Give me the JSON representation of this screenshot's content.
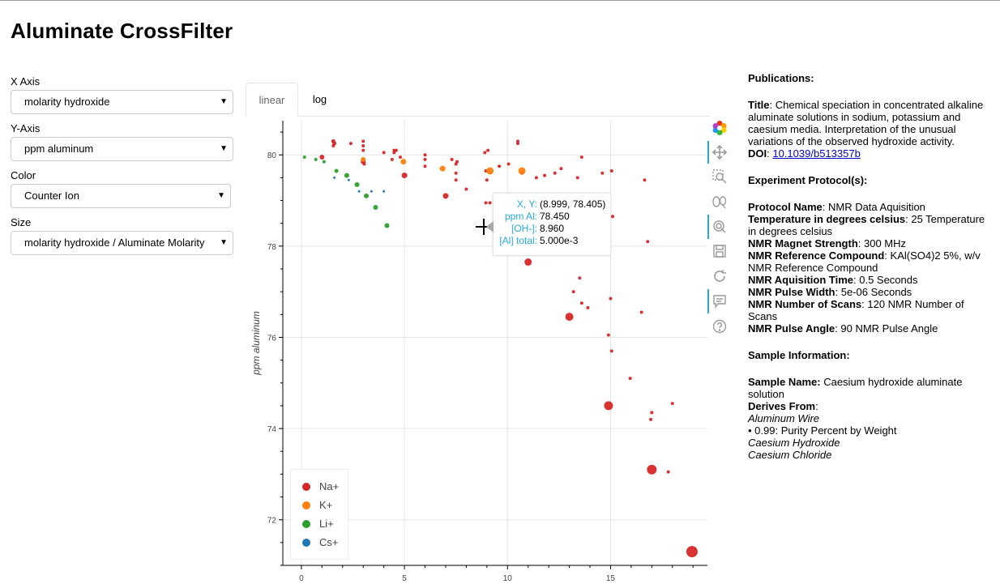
{
  "page_title": "Aluminate CrossFilter",
  "controls": {
    "x_axis": {
      "label": "X Axis",
      "value": "molarity hydroxide"
    },
    "y_axis": {
      "label": "Y-Axis",
      "value": "ppm aluminum"
    },
    "color": {
      "label": "Color",
      "value": "Counter Ion"
    },
    "size": {
      "label": "Size",
      "value": "molarity hydroxide / Aluminate Molarity"
    }
  },
  "tabs": [
    {
      "label": "linear",
      "active": true
    },
    {
      "label": "log",
      "active": false
    }
  ],
  "toolbar": {
    "tools": [
      "bokeh-logo-icon",
      "pan-icon",
      "box-zoom-icon",
      "wheel-zoom-icon",
      "lasso-select-icon",
      "save-icon",
      "reset-icon",
      "hover-icon",
      "help-icon"
    ]
  },
  "tooltip": {
    "rows": [
      {
        "key": "X, Y:",
        "value": "(8.999, 78.405)"
      },
      {
        "key": "ppm Al:",
        "value": "78.450"
      },
      {
        "key": "[OH-]:",
        "value": "8.960"
      },
      {
        "key": "[Al] total:",
        "value": "5.000e-3"
      }
    ]
  },
  "legend": [
    {
      "label": "Na+",
      "color": "#d62728"
    },
    {
      "label": "K+",
      "color": "#ff7f0e"
    },
    {
      "label": "Li+",
      "color": "#2ca02c"
    },
    {
      "label": "Cs+",
      "color": "#1f77b4"
    }
  ],
  "chart_data": {
    "type": "scatter",
    "ylabel": "ppm aluminum",
    "xlabel": "",
    "xlim": [
      -0.9,
      19.7
    ],
    "ylim": [
      71.0,
      80.75
    ],
    "xticks": [
      0,
      5,
      10,
      15
    ],
    "yticks": [
      72,
      74,
      76,
      78,
      80
    ],
    "grid": true,
    "legend_position": "bottom-left",
    "series": [
      {
        "name": "Na+",
        "color": "#d62728",
        "points": [
          [
            1.0,
            79.95,
            3
          ],
          [
            1.55,
            80.3,
            2.5
          ],
          [
            1.6,
            80.25,
            2.5
          ],
          [
            1.55,
            80.2,
            2
          ],
          [
            2.4,
            80.25,
            2
          ],
          [
            3.0,
            80.3,
            2
          ],
          [
            3.0,
            80.2,
            2
          ],
          [
            3.0,
            80.1,
            2
          ],
          [
            3.0,
            79.85,
            3
          ],
          [
            3.05,
            79.8,
            2
          ],
          [
            4.0,
            80.05,
            2
          ],
          [
            4.5,
            80.1,
            2
          ],
          [
            4.6,
            80.1,
            2
          ],
          [
            4.5,
            80.05,
            2
          ],
          [
            4.4,
            79.9,
            2
          ],
          [
            4.8,
            79.95,
            2
          ],
          [
            5.0,
            79.55,
            3.5
          ],
          [
            6.0,
            80.0,
            2
          ],
          [
            6.0,
            79.9,
            2
          ],
          [
            6.0,
            79.75,
            2
          ],
          [
            7.0,
            79.1,
            3.5
          ],
          [
            7.3,
            79.9,
            2
          ],
          [
            7.5,
            79.8,
            2
          ],
          [
            7.55,
            79.85,
            2
          ],
          [
            7.5,
            79.6,
            2
          ],
          [
            7.5,
            79.45,
            2
          ],
          [
            8.0,
            79.25,
            2
          ],
          [
            8.9,
            80.05,
            2
          ],
          [
            9.05,
            80.1,
            2
          ],
          [
            8.95,
            79.65,
            2
          ],
          [
            9.0,
            79.45,
            2
          ],
          [
            8.95,
            78.95,
            2
          ],
          [
            9.15,
            78.95,
            2
          ],
          [
            10.05,
            79.8,
            2
          ],
          [
            10.5,
            80.3,
            2
          ],
          [
            10.5,
            80.25,
            2
          ],
          [
            10.7,
            79.6,
            2
          ],
          [
            11.0,
            77.65,
            4.5
          ],
          [
            11.4,
            79.5,
            2
          ],
          [
            11.8,
            79.55,
            2
          ],
          [
            12.3,
            79.6,
            2
          ],
          [
            12.6,
            79.7,
            2
          ],
          [
            13.2,
            77.0,
            2
          ],
          [
            13.4,
            79.5,
            2
          ],
          [
            13.5,
            77.3,
            2
          ],
          [
            13.6,
            76.75,
            2
          ],
          [
            13.6,
            79.95,
            2
          ],
          [
            13.9,
            76.65,
            2
          ],
          [
            13.0,
            76.45,
            5
          ],
          [
            14.6,
            79.6,
            2
          ],
          [
            14.9,
            76.05,
            2
          ],
          [
            15.05,
            75.7,
            2
          ],
          [
            15.0,
            76.85,
            2
          ],
          [
            15.05,
            79.65,
            2
          ],
          [
            14.9,
            74.5,
            5.5
          ],
          [
            15.95,
            75.1,
            2
          ],
          [
            16.5,
            76.55,
            2
          ],
          [
            16.65,
            79.45,
            2
          ],
          [
            16.8,
            78.1,
            2
          ],
          [
            17.0,
            74.35,
            2
          ],
          [
            16.95,
            74.2,
            2
          ],
          [
            17.0,
            73.1,
            6
          ],
          [
            17.8,
            73.05,
            2
          ],
          [
            18.0,
            74.55,
            2
          ],
          [
            18.95,
            71.3,
            7
          ],
          [
            10.5,
            78.4,
            2
          ],
          [
            9.6,
            79.75,
            2
          ],
          [
            15.1,
            78.65,
            2
          ]
        ]
      },
      {
        "name": "K+",
        "color": "#ff7f0e",
        "points": [
          [
            3.0,
            79.9,
            3
          ],
          [
            4.95,
            79.85,
            3.5
          ],
          [
            6.85,
            79.7,
            3.5
          ],
          [
            9.15,
            79.65,
            4.5
          ],
          [
            10.7,
            79.65,
            4.5
          ]
        ]
      },
      {
        "name": "Li+",
        "color": "#2ca02c",
        "points": [
          [
            0.15,
            79.95,
            2
          ],
          [
            0.7,
            79.9,
            2
          ],
          [
            1.1,
            79.85,
            2
          ],
          [
            1.7,
            79.65,
            2.5
          ],
          [
            2.2,
            79.55,
            3
          ],
          [
            2.7,
            79.35,
            3
          ],
          [
            3.15,
            79.1,
            3
          ],
          [
            3.6,
            78.85,
            3
          ],
          [
            4.15,
            78.45,
            3
          ]
        ]
      },
      {
        "name": "Cs+",
        "color": "#1f77b4",
        "points": [
          [
            1.6,
            79.5,
            1.5
          ],
          [
            2.3,
            79.45,
            1.5
          ],
          [
            2.8,
            79.2,
            1.5
          ],
          [
            3.4,
            79.2,
            1.5
          ],
          [
            4.0,
            79.2,
            1.5
          ]
        ]
      }
    ]
  },
  "info": {
    "publications_heading": "Publications:",
    "title_label": "Title",
    "title_text": ": Chemical speciation in concentrated alkaline aluminate solutions in sodium, potassium and caesium media. Interpretation of the unusual variations of the observed hydroxide activity.",
    "doi_label": "DOI",
    "doi_value": "10.1039/b513357b",
    "protocol_heading": "Experiment Protocol(s):",
    "protocol": [
      {
        "label": "Protocol Name",
        "value": ": NMR Data Aquisition"
      },
      {
        "label": "Temperature in degrees celsius",
        "value": ": 25 Temperature in degrees celsius"
      },
      {
        "label": "NMR Magnet Strength",
        "value": ": 300 MHz"
      },
      {
        "label": "NMR Reference Compound",
        "value": ": KAl(SO4)2 5%, w/v NMR Reference Compound"
      },
      {
        "label": "NMR Aquisition Time",
        "value": ": 0.5 Seconds"
      },
      {
        "label": "NMR Pulse Width",
        "value": ": 5e-06 Seconds"
      },
      {
        "label": "NMR Number of Scans",
        "value": ": 120 NMR Number of Scans"
      },
      {
        "label": "NMR Pulse Angle",
        "value": ": 90 NMR Pulse Angle"
      }
    ],
    "sample_heading": "Sample Information:",
    "sample_name_label": "Sample Name:",
    "sample_name_value": " Caesium hydroxide aluminate solution",
    "derives_label": "Derives From",
    "derives_colon": ":",
    "derives_items": [
      "Aluminum Wire"
    ],
    "purity_line": "• 0.99: Purity Percent by Weight",
    "derives_items_2": [
      "Caesium Hydroxide",
      "Caesium Chloride"
    ]
  }
}
